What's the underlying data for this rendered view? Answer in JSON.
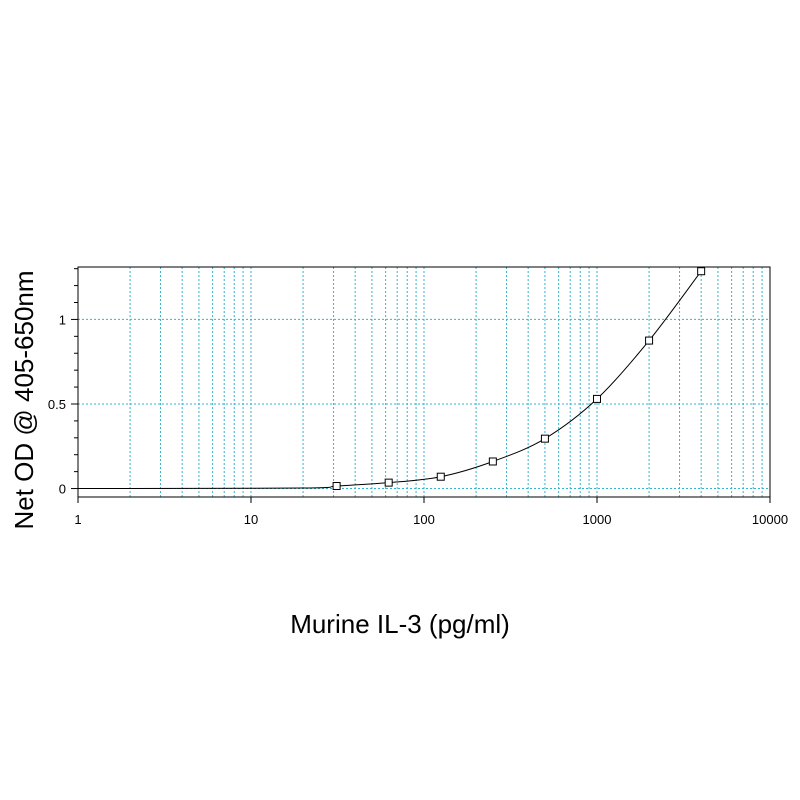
{
  "chart_data": {
    "type": "scatter",
    "title": "",
    "xlabel": "Murine IL-3 (pg/ml)",
    "ylabel": "Net OD @ 405-650nm",
    "x_scale": "log",
    "xlim": [
      1,
      10000
    ],
    "ylim": [
      -0.05,
      1.31
    ],
    "x_ticks": [
      1,
      10,
      100,
      1000,
      10000
    ],
    "x_tick_labels": [
      "1",
      "10",
      "100",
      "1000",
      "10000"
    ],
    "y_ticks": [
      0,
      0.5,
      1
    ],
    "y_tick_labels": [
      "0",
      "0.5",
      "1"
    ],
    "grid": true,
    "grid_color": "#33b5cc",
    "marker": "square",
    "fit_curve": true,
    "points": {
      "x": [
        31.25,
        62.5,
        125,
        250,
        500,
        1000,
        2000,
        4000
      ],
      "y": [
        0.015,
        0.035,
        0.07,
        0.16,
        0.295,
        0.53,
        0.875,
        1.285
      ]
    }
  }
}
